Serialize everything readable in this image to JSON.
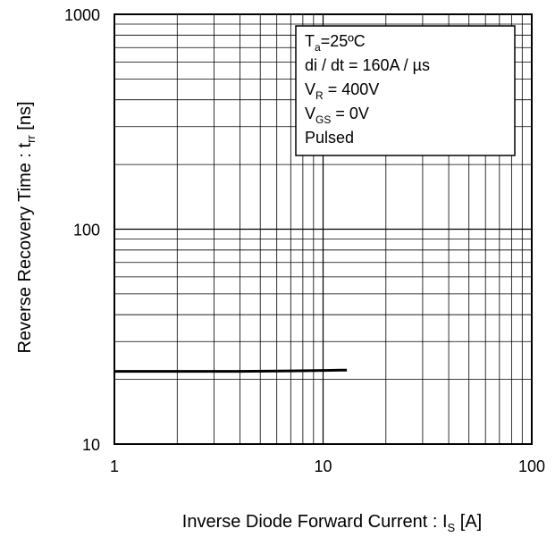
{
  "chart_data": {
    "type": "line",
    "x_scale": "log",
    "y_scale": "log",
    "xlim": [
      1,
      100
    ],
    "ylim": [
      10,
      1000
    ],
    "grid": true,
    "x_ticks": [
      {
        "value": 1,
        "label": "1"
      },
      {
        "value": 10,
        "label": "10"
      },
      {
        "value": 100,
        "label": "100"
      }
    ],
    "y_ticks": [
      {
        "value": 10,
        "label": "10"
      },
      {
        "value": 100,
        "label": "100"
      },
      {
        "value": 1000,
        "label": "1000"
      }
    ],
    "xlabel": {
      "main": "Inverse Diode  Forward Current : I",
      "sub": "S",
      "unit": " [A]"
    },
    "ylabel": {
      "main": "Reverse Recovery Time : t",
      "sub": "rr",
      "unit": " [ns]"
    },
    "legend_position": "top-right",
    "annotation": [
      {
        "main": "T",
        "sub": "a",
        "rest": "=25ºC"
      },
      {
        "main": "di / dt = 160A / µs",
        "sub": "",
        "rest": ""
      },
      {
        "main": "V",
        "sub": "R",
        "rest": " = 400V"
      },
      {
        "main": "V",
        "sub": "GS",
        "rest": " = 0V"
      },
      {
        "main": "Pulsed",
        "sub": "",
        "rest": ""
      }
    ],
    "series": [
      {
        "color": "#000000",
        "x": [
          1,
          2,
          4,
          7,
          10,
          13
        ],
        "y": [
          21.8,
          21.8,
          21.8,
          21.9,
          22.0,
          22.1
        ]
      }
    ]
  }
}
